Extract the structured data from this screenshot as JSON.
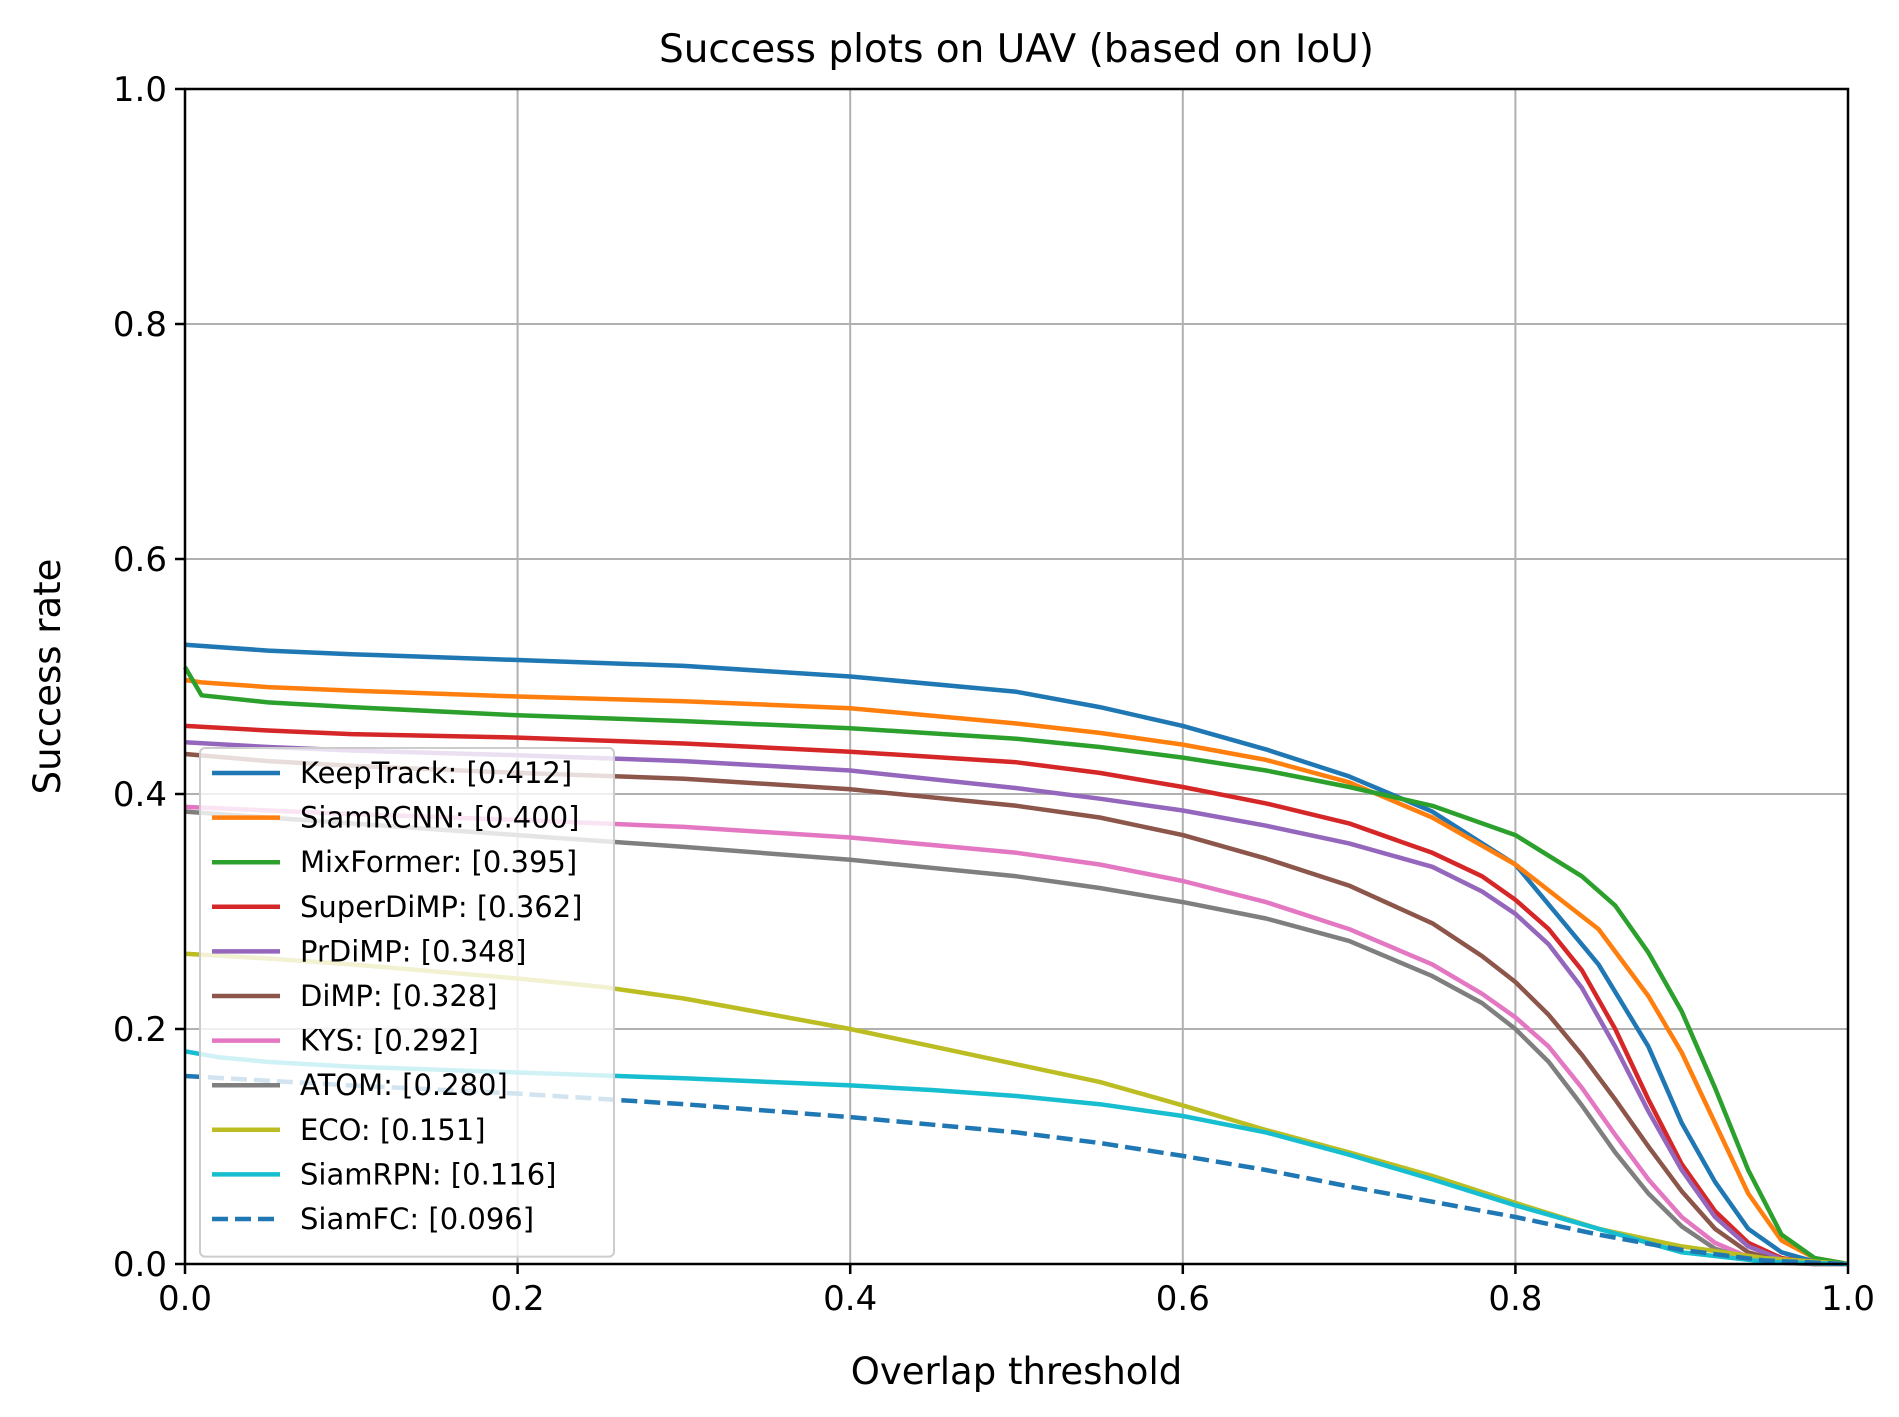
{
  "chart_data": {
    "type": "line",
    "title": "Success plots on UAV (based on IoU)",
    "xlabel": "Overlap threshold",
    "ylabel": "Success rate",
    "xlim": [
      0,
      1
    ],
    "ylim": [
      0,
      1
    ],
    "xticks": [
      "0.0",
      "0.2",
      "0.4",
      "0.6",
      "0.8",
      "1.0"
    ],
    "yticks": [
      "0.0",
      "0.2",
      "0.4",
      "0.6",
      "0.8",
      "1.0"
    ],
    "grid": true,
    "legend_position": "lower-left",
    "series": [
      {
        "name": "KeepTrack: [0.412]",
        "color": "#1f77b4",
        "dash": "solid",
        "x": [
          0,
          0.05,
          0.1,
          0.2,
          0.3,
          0.4,
          0.5,
          0.55,
          0.6,
          0.65,
          0.7,
          0.75,
          0.8,
          0.85,
          0.88,
          0.9,
          0.92,
          0.94,
          0.96,
          0.98,
          1.0
        ],
        "y": [
          0.527,
          0.522,
          0.519,
          0.514,
          0.509,
          0.5,
          0.487,
          0.474,
          0.458,
          0.438,
          0.415,
          0.385,
          0.34,
          0.255,
          0.185,
          0.12,
          0.07,
          0.03,
          0.01,
          0.002,
          0.0
        ]
      },
      {
        "name": "SiamRCNN: [0.400]",
        "color": "#ff7f0e",
        "dash": "solid",
        "x": [
          0,
          0.01,
          0.05,
          0.1,
          0.2,
          0.3,
          0.4,
          0.5,
          0.55,
          0.6,
          0.65,
          0.7,
          0.75,
          0.8,
          0.85,
          0.88,
          0.9,
          0.92,
          0.94,
          0.96,
          0.98,
          1.0
        ],
        "y": [
          0.497,
          0.495,
          0.491,
          0.488,
          0.483,
          0.479,
          0.473,
          0.46,
          0.452,
          0.442,
          0.429,
          0.41,
          0.38,
          0.34,
          0.285,
          0.228,
          0.18,
          0.12,
          0.06,
          0.02,
          0.005,
          0.0
        ]
      },
      {
        "name": "MixFormer: [0.395]",
        "color": "#2ca02c",
        "dash": "solid",
        "x": [
          0,
          0.01,
          0.05,
          0.1,
          0.2,
          0.3,
          0.4,
          0.5,
          0.55,
          0.6,
          0.65,
          0.7,
          0.75,
          0.8,
          0.84,
          0.86,
          0.88,
          0.9,
          0.92,
          0.94,
          0.96,
          0.98,
          1.0
        ],
        "y": [
          0.508,
          0.484,
          0.478,
          0.474,
          0.467,
          0.462,
          0.456,
          0.447,
          0.44,
          0.431,
          0.42,
          0.406,
          0.39,
          0.365,
          0.33,
          0.305,
          0.265,
          0.215,
          0.15,
          0.08,
          0.025,
          0.005,
          0.0
        ]
      },
      {
        "name": "SuperDiMP: [0.362]",
        "color": "#d62728",
        "dash": "solid",
        "x": [
          0,
          0.05,
          0.1,
          0.2,
          0.3,
          0.4,
          0.5,
          0.55,
          0.6,
          0.65,
          0.7,
          0.75,
          0.78,
          0.8,
          0.82,
          0.84,
          0.86,
          0.88,
          0.9,
          0.92,
          0.94,
          0.96,
          0.98,
          1.0
        ],
        "y": [
          0.458,
          0.454,
          0.451,
          0.448,
          0.443,
          0.436,
          0.427,
          0.418,
          0.406,
          0.392,
          0.375,
          0.35,
          0.33,
          0.31,
          0.285,
          0.25,
          0.2,
          0.14,
          0.085,
          0.045,
          0.018,
          0.005,
          0.001,
          0.0
        ]
      },
      {
        "name": "PrDiMP: [0.348]",
        "color": "#9467bd",
        "dash": "solid",
        "x": [
          0,
          0.05,
          0.1,
          0.2,
          0.3,
          0.4,
          0.5,
          0.55,
          0.6,
          0.65,
          0.7,
          0.75,
          0.78,
          0.8,
          0.82,
          0.84,
          0.86,
          0.88,
          0.9,
          0.92,
          0.94,
          0.96,
          0.98,
          1.0
        ],
        "y": [
          0.444,
          0.44,
          0.437,
          0.433,
          0.428,
          0.42,
          0.405,
          0.396,
          0.386,
          0.373,
          0.358,
          0.338,
          0.317,
          0.298,
          0.272,
          0.235,
          0.185,
          0.13,
          0.08,
          0.04,
          0.015,
          0.004,
          0.001,
          0.0
        ]
      },
      {
        "name": "DiMP: [0.328]",
        "color": "#8c564b",
        "dash": "solid",
        "x": [
          0,
          0.05,
          0.1,
          0.2,
          0.3,
          0.4,
          0.5,
          0.55,
          0.6,
          0.65,
          0.7,
          0.75,
          0.78,
          0.8,
          0.82,
          0.84,
          0.86,
          0.88,
          0.9,
          0.92,
          0.94,
          0.96,
          0.98,
          1.0
        ],
        "y": [
          0.434,
          0.428,
          0.424,
          0.418,
          0.413,
          0.404,
          0.39,
          0.38,
          0.365,
          0.345,
          0.322,
          0.29,
          0.262,
          0.24,
          0.212,
          0.178,
          0.14,
          0.1,
          0.062,
          0.03,
          0.01,
          0.002,
          0.0,
          0.0
        ]
      },
      {
        "name": "KYS: [0.292]",
        "color": "#e377c2",
        "dash": "solid",
        "x": [
          0,
          0.05,
          0.1,
          0.2,
          0.3,
          0.4,
          0.5,
          0.55,
          0.6,
          0.65,
          0.7,
          0.75,
          0.78,
          0.8,
          0.82,
          0.84,
          0.86,
          0.88,
          0.9,
          0.92,
          0.94,
          0.96,
          0.98,
          1.0
        ],
        "y": [
          0.389,
          0.386,
          0.383,
          0.378,
          0.372,
          0.363,
          0.35,
          0.34,
          0.326,
          0.308,
          0.285,
          0.255,
          0.23,
          0.21,
          0.185,
          0.15,
          0.11,
          0.072,
          0.04,
          0.018,
          0.006,
          0.001,
          0.0,
          0.0
        ]
      },
      {
        "name": "ATOM: [0.280]",
        "color": "#7f7f7f",
        "dash": "solid",
        "x": [
          0,
          0.05,
          0.1,
          0.2,
          0.3,
          0.4,
          0.5,
          0.55,
          0.6,
          0.65,
          0.7,
          0.75,
          0.78,
          0.8,
          0.82,
          0.84,
          0.86,
          0.88,
          0.9,
          0.92,
          0.94,
          0.96,
          0.98,
          1.0
        ],
        "y": [
          0.385,
          0.38,
          0.375,
          0.365,
          0.355,
          0.344,
          0.33,
          0.32,
          0.308,
          0.294,
          0.275,
          0.245,
          0.222,
          0.2,
          0.172,
          0.135,
          0.095,
          0.06,
          0.032,
          0.013,
          0.004,
          0.001,
          0.0,
          0.0
        ]
      },
      {
        "name": "ECO: [0.151]",
        "color": "#bcbd22",
        "dash": "solid",
        "x": [
          0,
          0.05,
          0.1,
          0.2,
          0.25,
          0.3,
          0.35,
          0.4,
          0.45,
          0.5,
          0.55,
          0.6,
          0.65,
          0.7,
          0.75,
          0.8,
          0.85,
          0.9,
          0.95,
          1.0
        ],
        "y": [
          0.264,
          0.26,
          0.255,
          0.243,
          0.236,
          0.226,
          0.213,
          0.2,
          0.185,
          0.17,
          0.155,
          0.135,
          0.114,
          0.095,
          0.075,
          0.052,
          0.03,
          0.015,
          0.005,
          0.0
        ]
      },
      {
        "name": "SiamRPN: [0.116]",
        "color": "#17becf",
        "dash": "solid",
        "x": [
          0,
          0.02,
          0.05,
          0.1,
          0.2,
          0.3,
          0.4,
          0.45,
          0.5,
          0.55,
          0.6,
          0.65,
          0.7,
          0.75,
          0.8,
          0.85,
          0.9,
          0.95,
          1.0
        ],
        "y": [
          0.181,
          0.176,
          0.172,
          0.168,
          0.163,
          0.158,
          0.152,
          0.148,
          0.143,
          0.136,
          0.126,
          0.112,
          0.093,
          0.072,
          0.05,
          0.03,
          0.01,
          0.002,
          0.0
        ]
      },
      {
        "name": "SiamFC: [0.096]",
        "color": "#1f77b4",
        "dash": "dashed",
        "x": [
          0,
          0.05,
          0.1,
          0.2,
          0.3,
          0.4,
          0.5,
          0.55,
          0.6,
          0.65,
          0.7,
          0.75,
          0.8,
          0.85,
          0.9,
          0.95,
          1.0
        ],
        "y": [
          0.16,
          0.156,
          0.152,
          0.145,
          0.136,
          0.125,
          0.112,
          0.103,
          0.092,
          0.08,
          0.066,
          0.053,
          0.04,
          0.025,
          0.012,
          0.003,
          0.0
        ]
      }
    ]
  }
}
